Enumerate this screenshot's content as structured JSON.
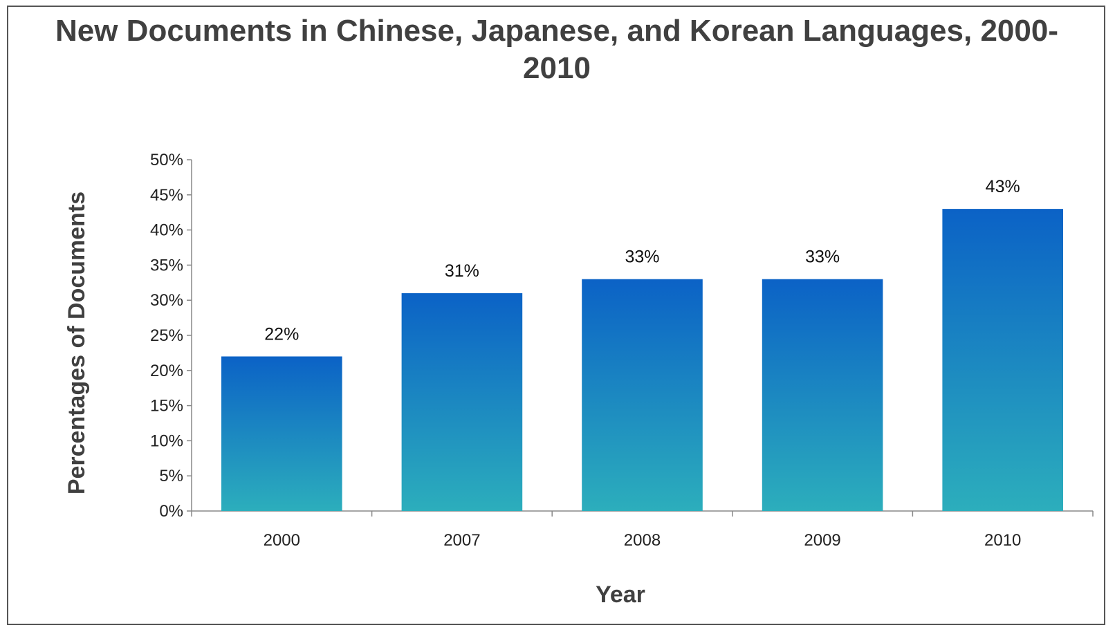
{
  "chart_data": {
    "type": "bar",
    "title": "New Documents in Chinese, Japanese, and Korean Languages, 2000-2010",
    "xlabel": "Year",
    "ylabel": "Percentages of Documents",
    "categories": [
      "2000",
      "2007",
      "2008",
      "2009",
      "2010"
    ],
    "values": [
      22,
      31,
      33,
      33,
      43
    ],
    "value_labels": [
      "22%",
      "31%",
      "33%",
      "33%",
      "43%"
    ],
    "ylim": [
      0,
      50
    ],
    "y_ticks": [
      0,
      5,
      10,
      15,
      20,
      25,
      30,
      35,
      40,
      45,
      50
    ],
    "y_tick_labels": [
      "0%",
      "5%",
      "10%",
      "15%",
      "20%",
      "25%",
      "30%",
      "35%",
      "40%",
      "45%",
      "50%"
    ],
    "grid": false,
    "legend": "none",
    "colors": {
      "bar_top": "#0b62c6",
      "bar_bottom": "#2caebc",
      "axis": "#888888"
    }
  }
}
